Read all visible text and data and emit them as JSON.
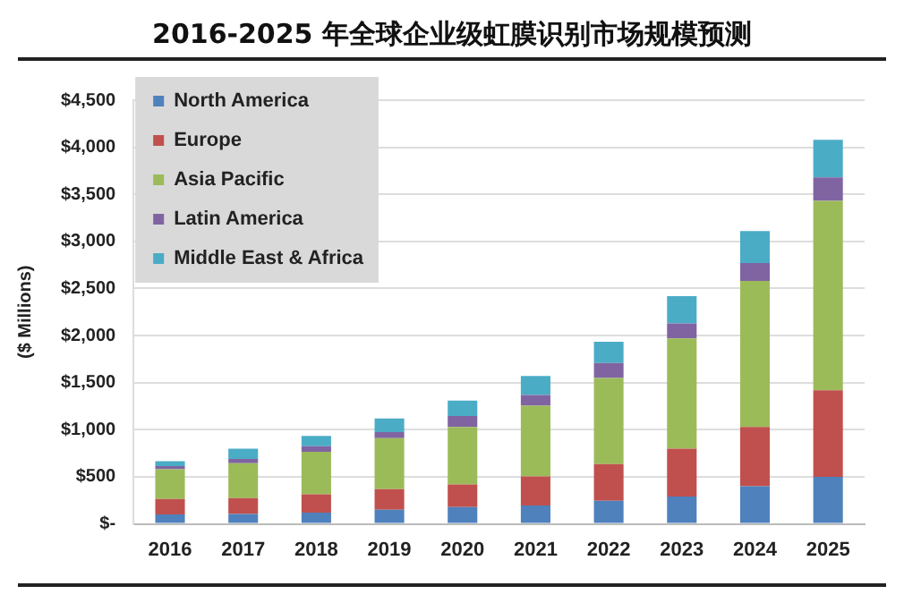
{
  "chart_data": {
    "type": "bar",
    "title": "2016-2025 年全球企业级虹膜识别市场规模预测",
    "ylabel": "($ Millions)",
    "stacked": true,
    "grid": "y",
    "legend": "top left",
    "categories": [
      "2016",
      "2017",
      "2018",
      "2019",
      "2020",
      "2021",
      "2022",
      "2023",
      "2024",
      "2025"
    ],
    "series": [
      {
        "name": "North America",
        "color": "#4f81bd",
        "values": [
          100,
          105,
          120,
          150,
          180,
          195,
          245,
          290,
          400,
          500
        ]
      },
      {
        "name": "Europe",
        "color": "#c0504d",
        "values": [
          165,
          170,
          195,
          220,
          240,
          310,
          390,
          510,
          630,
          920
        ]
      },
      {
        "name": "Asia Pacific",
        "color": "#9bbb59",
        "values": [
          315,
          370,
          450,
          540,
          610,
          750,
          915,
          1170,
          1550,
          2010
        ]
      },
      {
        "name": "Latin America",
        "color": "#8064a2",
        "values": [
          35,
          45,
          60,
          65,
          115,
          115,
          160,
          160,
          190,
          250
        ]
      },
      {
        "name": "Middle East & Africa",
        "color": "#4bacc6",
        "values": [
          50,
          110,
          110,
          145,
          165,
          200,
          225,
          290,
          340,
          400
        ]
      }
    ],
    "ylim": [
      0,
      4500
    ],
    "yticks": [
      {
        "value": 0,
        "label": "$-"
      },
      {
        "value": 500,
        "label": "$500"
      },
      {
        "value": 1000,
        "label": "$1,000"
      },
      {
        "value": 1500,
        "label": "$1,500"
      },
      {
        "value": 2000,
        "label": "$2,000"
      },
      {
        "value": 2500,
        "label": "$2,500"
      },
      {
        "value": 3000,
        "label": "$3,000"
      },
      {
        "value": 3500,
        "label": "$3,500"
      },
      {
        "value": 4000,
        "label": "$4,000"
      },
      {
        "value": 4500,
        "label": "$4,500"
      }
    ]
  }
}
